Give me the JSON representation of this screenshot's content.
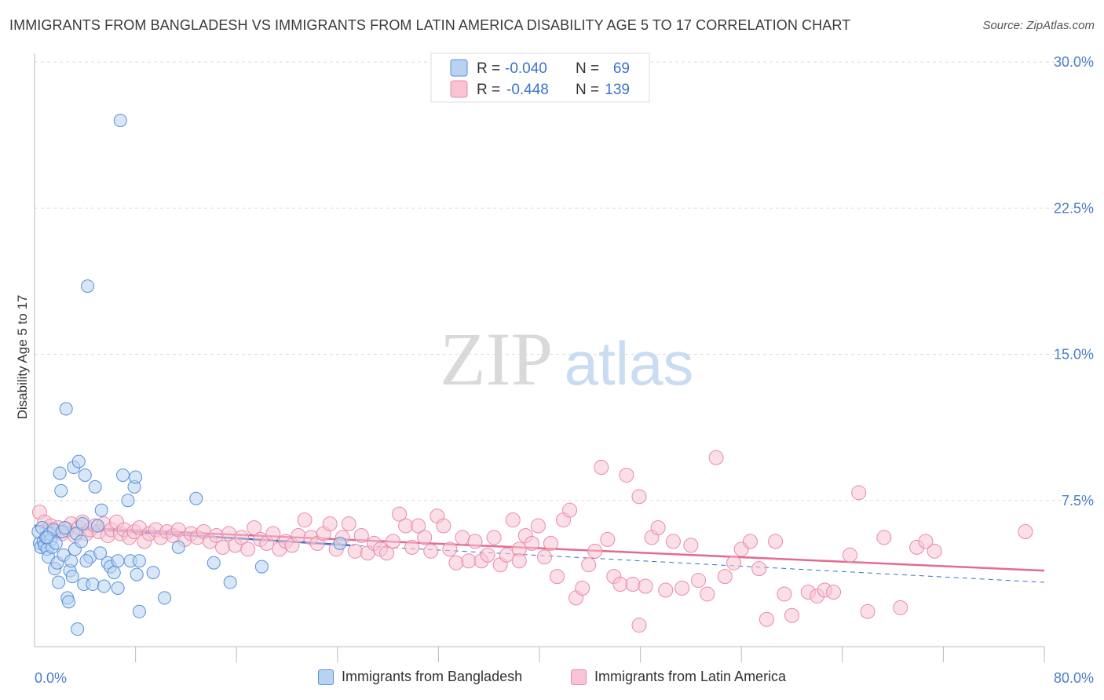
{
  "title": "IMMIGRANTS FROM BANGLADESH VS IMMIGRANTS FROM LATIN AMERICA DISABILITY AGE 5 TO 17 CORRELATION CHART",
  "source": "Source: ZipAtlas.com",
  "watermark": {
    "part1": "ZIP",
    "part2": "atlas"
  },
  "colors": {
    "blue_fill": "#b8d3f2",
    "blue_stroke": "#5a90d6",
    "blue_line": "#3a6fcc",
    "pink_fill": "#f8c4d4",
    "pink_stroke": "#e88aaa",
    "pink_line": "#e36b93",
    "tick_label": "#4a7fc8",
    "grid": "#dddddd"
  },
  "legend": {
    "rows": [
      {
        "r_label": "R =",
        "r_value": "-0.040",
        "n_label": "N =",
        "n_value": "69"
      },
      {
        "r_label": "R =",
        "r_value": "-0.448",
        "n_label": "N =",
        "n_value": "139"
      }
    ]
  },
  "bottom_legend": [
    "Immigrants from Bangladesh",
    "Immigrants from Latin America"
  ],
  "chart_data": {
    "type": "scatter",
    "title": "IMMIGRANTS FROM BANGLADESH VS IMMIGRANTS FROM LATIN AMERICA DISABILITY AGE 5 TO 17 CORRELATION CHART",
    "xlabel": "",
    "ylabel": "Disability Age 5 to 17",
    "xlim": [
      0,
      80
    ],
    "ylim": [
      0,
      30.0
    ],
    "x_tick_labels": [
      "0.0%",
      "80.0%"
    ],
    "y_ticks": [
      7.5,
      15.0,
      22.5,
      30.0
    ],
    "y_tick_labels": [
      "7.5%",
      "15.0%",
      "22.5%",
      "30.0%"
    ],
    "grid": "horizontal dashed",
    "legend_position": "top-center",
    "series": [
      {
        "name": "Immigrants from Bangladesh",
        "r": -0.04,
        "n": 69,
        "trend": {
          "x": [
            0,
            25
          ],
          "y": [
            6.2,
            5.2
          ],
          "dashed_extension": {
            "x": [
              25,
              80
            ],
            "y": [
              5.2,
              3.3
            ]
          }
        },
        "points": [
          [
            0.3,
            5.9
          ],
          [
            0.4,
            5.3
          ],
          [
            0.5,
            5.1
          ],
          [
            0.6,
            6.1
          ],
          [
            0.7,
            5.4
          ],
          [
            0.8,
            5.2
          ],
          [
            0.9,
            5.6
          ],
          [
            1.0,
            5.0
          ],
          [
            1.1,
            4.6
          ],
          [
            1.2,
            5.8
          ],
          [
            1.3,
            5.5
          ],
          [
            1.4,
            5.1
          ],
          [
            1.5,
            6.0
          ],
          [
            1.6,
            4.0
          ],
          [
            1.7,
            5.3
          ],
          [
            1.8,
            4.3
          ],
          [
            1.9,
            3.3
          ],
          [
            2.0,
            8.9
          ],
          [
            2.1,
            8.0
          ],
          [
            2.2,
            5.9
          ],
          [
            2.3,
            4.7
          ],
          [
            2.5,
            12.2
          ],
          [
            2.6,
            2.5
          ],
          [
            2.7,
            2.3
          ],
          [
            2.8,
            3.9
          ],
          [
            2.9,
            4.4
          ],
          [
            3.0,
            3.6
          ],
          [
            3.1,
            9.2
          ],
          [
            3.2,
            5.0
          ],
          [
            3.3,
            5.8
          ],
          [
            3.4,
            0.9
          ],
          [
            3.5,
            9.5
          ],
          [
            3.7,
            5.4
          ],
          [
            3.8,
            6.3
          ],
          [
            3.9,
            3.2
          ],
          [
            4.0,
            8.8
          ],
          [
            4.2,
            18.5
          ],
          [
            4.4,
            4.6
          ],
          [
            4.6,
            3.2
          ],
          [
            4.8,
            8.2
          ],
          [
            5.0,
            6.2
          ],
          [
            5.2,
            4.8
          ],
          [
            5.3,
            7.0
          ],
          [
            5.5,
            3.1
          ],
          [
            5.8,
            4.3
          ],
          [
            6.0,
            4.1
          ],
          [
            6.3,
            3.8
          ],
          [
            6.6,
            3.0
          ],
          [
            6.8,
            27.0
          ],
          [
            7.0,
            8.8
          ],
          [
            7.4,
            7.5
          ],
          [
            7.6,
            4.4
          ],
          [
            7.9,
            8.2
          ],
          [
            8.0,
            8.7
          ],
          [
            8.1,
            3.7
          ],
          [
            8.3,
            1.8
          ],
          [
            9.4,
            3.8
          ],
          [
            10.3,
            2.5
          ],
          [
            12.8,
            7.6
          ],
          [
            11.4,
            5.1
          ],
          [
            14.2,
            4.3
          ],
          [
            15.5,
            3.3
          ],
          [
            18.0,
            4.1
          ],
          [
            24.2,
            5.3
          ],
          [
            1.0,
            5.6
          ],
          [
            2.4,
            6.1
          ],
          [
            4.1,
            4.4
          ],
          [
            6.6,
            4.4
          ],
          [
            8.3,
            4.4
          ]
        ]
      },
      {
        "name": "Immigrants from Latin America",
        "r": -0.448,
        "n": 139,
        "trend": {
          "x": [
            0,
            80
          ],
          "y": [
            6.2,
            3.9
          ]
        },
        "points": [
          [
            0.4,
            6.9
          ],
          [
            0.8,
            6.4
          ],
          [
            1.0,
            6.0
          ],
          [
            1.3,
            6.2
          ],
          [
            1.6,
            5.9
          ],
          [
            1.9,
            6.1
          ],
          [
            2.2,
            5.8
          ],
          [
            2.6,
            6.0
          ],
          [
            2.9,
            6.3
          ],
          [
            3.2,
            5.7
          ],
          [
            3.5,
            6.1
          ],
          [
            3.8,
            6.4
          ],
          [
            4.1,
            5.8
          ],
          [
            4.4,
            6.0
          ],
          [
            4.8,
            6.2
          ],
          [
            5.1,
            5.9
          ],
          [
            5.5,
            6.3
          ],
          [
            5.8,
            5.7
          ],
          [
            6.1,
            6.0
          ],
          [
            6.5,
            6.4
          ],
          [
            6.8,
            5.8
          ],
          [
            7.1,
            6.0
          ],
          [
            7.5,
            5.6
          ],
          [
            7.9,
            5.9
          ],
          [
            8.3,
            6.1
          ],
          [
            8.7,
            5.4
          ],
          [
            9.1,
            5.8
          ],
          [
            9.6,
            6.0
          ],
          [
            10.0,
            5.6
          ],
          [
            10.5,
            5.9
          ],
          [
            11.0,
            5.7
          ],
          [
            11.4,
            6.0
          ],
          [
            11.9,
            5.5
          ],
          [
            12.4,
            5.8
          ],
          [
            12.9,
            5.6
          ],
          [
            13.4,
            5.9
          ],
          [
            13.9,
            5.4
          ],
          [
            14.4,
            5.7
          ],
          [
            14.9,
            5.1
          ],
          [
            15.4,
            5.8
          ],
          [
            15.9,
            5.2
          ],
          [
            16.4,
            5.6
          ],
          [
            16.9,
            5.0
          ],
          [
            17.4,
            6.1
          ],
          [
            17.9,
            5.5
          ],
          [
            18.4,
            5.3
          ],
          [
            18.9,
            5.8
          ],
          [
            19.4,
            5.0
          ],
          [
            19.9,
            5.4
          ],
          [
            20.4,
            5.2
          ],
          [
            20.9,
            5.7
          ],
          [
            21.4,
            6.5
          ],
          [
            21.9,
            5.6
          ],
          [
            22.4,
            5.3
          ],
          [
            22.9,
            5.8
          ],
          [
            23.4,
            6.3
          ],
          [
            23.9,
            5.0
          ],
          [
            24.4,
            5.6
          ],
          [
            24.9,
            6.3
          ],
          [
            25.4,
            4.9
          ],
          [
            25.9,
            5.7
          ],
          [
            26.4,
            4.8
          ],
          [
            26.9,
            5.3
          ],
          [
            27.4,
            5.0
          ],
          [
            27.9,
            4.8
          ],
          [
            28.4,
            5.4
          ],
          [
            28.9,
            6.8
          ],
          [
            29.4,
            6.2
          ],
          [
            29.9,
            5.1
          ],
          [
            30.4,
            6.2
          ],
          [
            30.9,
            5.6
          ],
          [
            31.4,
            4.9
          ],
          [
            31.9,
            6.7
          ],
          [
            32.4,
            6.2
          ],
          [
            32.9,
            5.0
          ],
          [
            33.4,
            4.3
          ],
          [
            33.9,
            5.6
          ],
          [
            34.4,
            4.4
          ],
          [
            34.9,
            5.4
          ],
          [
            35.4,
            4.4
          ],
          [
            35.9,
            4.7
          ],
          [
            36.4,
            5.6
          ],
          [
            36.9,
            4.2
          ],
          [
            37.4,
            4.7
          ],
          [
            37.9,
            6.5
          ],
          [
            38.4,
            5.0
          ],
          [
            38.9,
            5.7
          ],
          [
            39.4,
            5.3
          ],
          [
            39.9,
            6.2
          ],
          [
            40.4,
            4.6
          ],
          [
            40.9,
            5.3
          ],
          [
            41.4,
            3.6
          ],
          [
            41.9,
            6.5
          ],
          [
            42.4,
            7.0
          ],
          [
            42.9,
            2.5
          ],
          [
            43.4,
            3.0
          ],
          [
            43.9,
            4.2
          ],
          [
            44.4,
            4.9
          ],
          [
            44.9,
            9.2
          ],
          [
            45.4,
            5.5
          ],
          [
            45.9,
            3.6
          ],
          [
            46.4,
            3.2
          ],
          [
            46.9,
            8.8
          ],
          [
            47.4,
            3.2
          ],
          [
            47.9,
            1.1
          ],
          [
            47.9,
            7.7
          ],
          [
            48.4,
            3.1
          ],
          [
            48.9,
            5.6
          ],
          [
            49.4,
            6.1
          ],
          [
            50.0,
            2.9
          ],
          [
            50.6,
            5.4
          ],
          [
            51.3,
            3.0
          ],
          [
            52.0,
            5.2
          ],
          [
            52.6,
            3.4
          ],
          [
            53.3,
            2.7
          ],
          [
            54.0,
            9.7
          ],
          [
            54.7,
            3.6
          ],
          [
            55.4,
            4.3
          ],
          [
            56.0,
            5.0
          ],
          [
            56.7,
            5.4
          ],
          [
            57.4,
            4.0
          ],
          [
            58.0,
            1.4
          ],
          [
            58.7,
            5.4
          ],
          [
            59.4,
            2.7
          ],
          [
            60.0,
            1.6
          ],
          [
            61.3,
            2.8
          ],
          [
            62.0,
            2.6
          ],
          [
            62.6,
            2.9
          ],
          [
            63.3,
            2.8
          ],
          [
            64.6,
            4.7
          ],
          [
            65.3,
            7.9
          ],
          [
            66.0,
            1.8
          ],
          [
            67.3,
            5.6
          ],
          [
            68.6,
            2.0
          ],
          [
            69.9,
            5.1
          ],
          [
            70.6,
            5.4
          ],
          [
            71.3,
            4.9
          ],
          [
            78.5,
            5.9
          ],
          [
            38.4,
            4.4
          ]
        ]
      }
    ]
  }
}
